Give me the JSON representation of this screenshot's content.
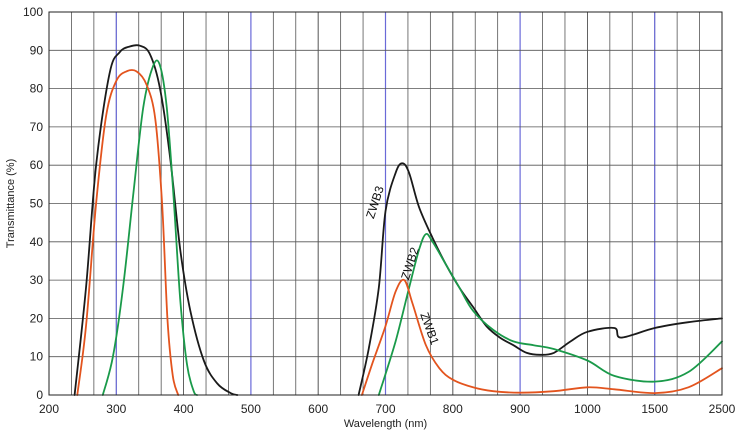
{
  "chart_data": {
    "type": "line",
    "xlabel": "Wavelength (nm)",
    "ylabel": "Transmittance (%)",
    "ylim": [
      0,
      100
    ],
    "y_ticks": [
      0,
      10,
      20,
      30,
      40,
      50,
      60,
      70,
      80,
      90,
      100
    ],
    "x_tick_labels": [
      "200",
      "300",
      "400",
      "500",
      "600",
      "700",
      "800",
      "900",
      "1000",
      "1500",
      "2500"
    ],
    "grid": true,
    "colors": {
      "grid_black": "#555555",
      "grid_blue": "#6a6ad8",
      "ZWB1": "#e3541e",
      "ZWB2": "#1a9a4a",
      "ZWB3": "#1a1a1a"
    },
    "series": [
      {
        "name": "ZWB3",
        "label": "ZWB3",
        "points": [
          [
            238,
            0
          ],
          [
            255,
            28
          ],
          [
            270,
            60
          ],
          [
            290,
            84
          ],
          [
            305,
            89.5
          ],
          [
            320,
            91
          ],
          [
            335,
            91.2
          ],
          [
            350,
            89
          ],
          [
            365,
            80
          ],
          [
            380,
            62
          ],
          [
            395,
            38
          ],
          [
            410,
            22
          ],
          [
            430,
            9
          ],
          [
            450,
            3
          ],
          [
            470,
            0.5
          ],
          [
            480,
            0
          ],
          [
            660,
            0
          ],
          [
            675,
            12
          ],
          [
            690,
            28
          ],
          [
            700,
            48
          ],
          [
            715,
            58
          ],
          [
            725,
            60.5
          ],
          [
            735,
            58
          ],
          [
            750,
            49
          ],
          [
            770,
            41
          ],
          [
            790,
            34
          ],
          [
            810,
            28
          ],
          [
            830,
            23
          ],
          [
            850,
            18
          ],
          [
            870,
            15
          ],
          [
            890,
            13
          ],
          [
            910,
            11
          ],
          [
            930,
            10.5
          ],
          [
            950,
            11
          ],
          [
            975,
            14
          ],
          [
            1000,
            16.5
          ],
          [
            1200,
            17.5
          ],
          [
            1250,
            15
          ],
          [
            1500,
            17.5
          ],
          [
            2000,
            19
          ],
          [
            2500,
            20
          ]
        ]
      },
      {
        "name": "ZWB2",
        "label": "ZWB2",
        "points": [
          [
            280,
            0
          ],
          [
            295,
            10
          ],
          [
            310,
            28
          ],
          [
            325,
            52
          ],
          [
            340,
            75
          ],
          [
            355,
            86
          ],
          [
            365,
            86
          ],
          [
            375,
            75
          ],
          [
            385,
            52
          ],
          [
            395,
            25
          ],
          [
            405,
            8
          ],
          [
            415,
            1
          ],
          [
            420,
            0
          ],
          [
            690,
            0
          ],
          [
            715,
            14
          ],
          [
            735,
            28
          ],
          [
            750,
            38
          ],
          [
            760,
            42
          ],
          [
            770,
            40
          ],
          [
            790,
            34
          ],
          [
            810,
            28
          ],
          [
            830,
            22
          ],
          [
            860,
            17
          ],
          [
            890,
            14
          ],
          [
            920,
            13
          ],
          [
            950,
            12
          ],
          [
            1000,
            9
          ],
          [
            1200,
            5
          ],
          [
            1500,
            3.5
          ],
          [
            2000,
            6
          ],
          [
            2500,
            14
          ]
        ]
      },
      {
        "name": "ZWB1",
        "label": "ZWB1",
        "points": [
          [
            242,
            0
          ],
          [
            255,
            18
          ],
          [
            270,
            50
          ],
          [
            285,
            73
          ],
          [
            300,
            82
          ],
          [
            315,
            84.5
          ],
          [
            330,
            84.5
          ],
          [
            345,
            81
          ],
          [
            358,
            72
          ],
          [
            368,
            50
          ],
          [
            376,
            20
          ],
          [
            384,
            5
          ],
          [
            392,
            0
          ],
          [
            665,
            0
          ],
          [
            680,
            8
          ],
          [
            700,
            18
          ],
          [
            715,
            27
          ],
          [
            728,
            30
          ],
          [
            740,
            24
          ],
          [
            760,
            13
          ],
          [
            780,
            7
          ],
          [
            800,
            4
          ],
          [
            830,
            2
          ],
          [
            860,
            1
          ],
          [
            900,
            0.6
          ],
          [
            950,
            1
          ],
          [
            1000,
            2
          ],
          [
            1200,
            1.5
          ],
          [
            1500,
            0.5
          ],
          [
            2000,
            2
          ],
          [
            2500,
            7
          ]
        ]
      }
    ]
  }
}
